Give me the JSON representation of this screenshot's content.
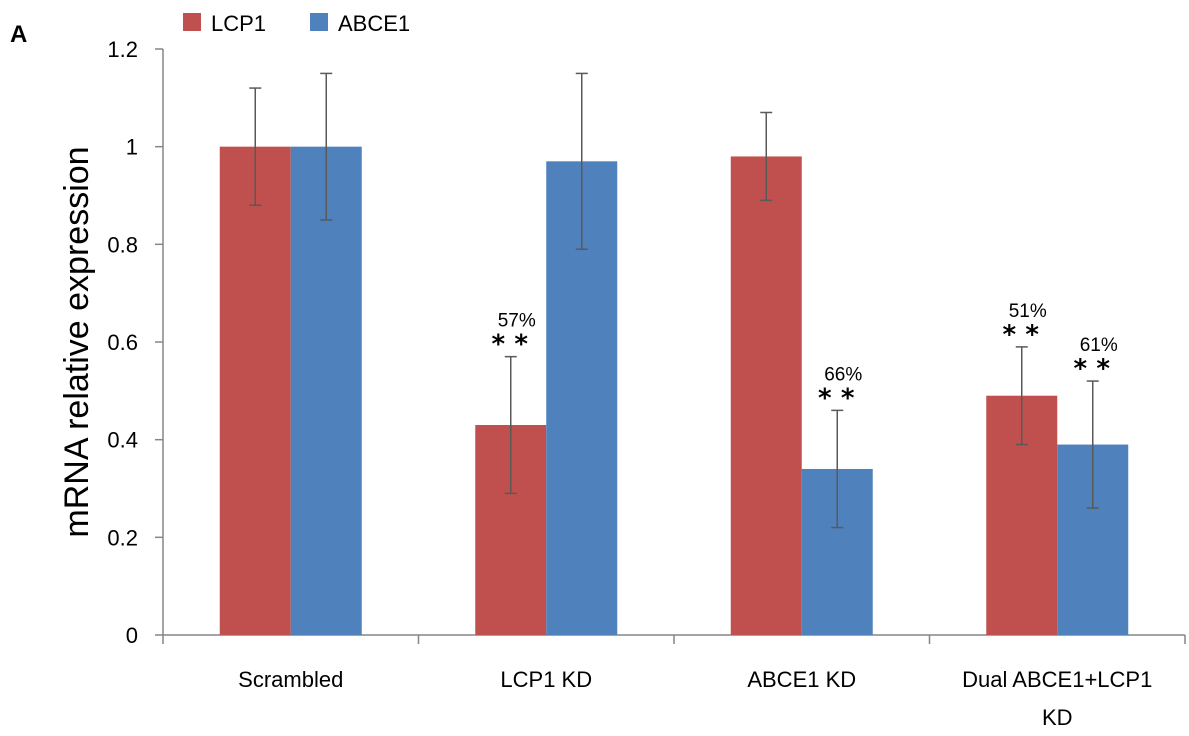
{
  "panel_label": "A",
  "chart_data": {
    "type": "bar",
    "title": "",
    "xlabel": "",
    "ylabel": "mRNA relative expression",
    "ylim": [
      0,
      1.2
    ],
    "yticks": [
      "0",
      "0.2",
      "0.4",
      "0.6",
      "0.8",
      "1",
      "1.2"
    ],
    "categories": [
      [
        "Scrambled"
      ],
      [
        "LCP1 KD"
      ],
      [
        "ABCE1 KD"
      ],
      [
        "Dual ABCE1+LCP1",
        "KD"
      ]
    ],
    "legend_position": "top-left",
    "grid": false,
    "series": [
      {
        "name": "LCP1",
        "color": "#c0504d",
        "values": [
          1.0,
          0.43,
          0.98,
          0.49
        ],
        "error": [
          0.12,
          0.14,
          0.09,
          0.1
        ],
        "annotations": [
          null,
          {
            "pct": "57%",
            "sig": "**"
          },
          null,
          {
            "pct": "51%",
            "sig": "**"
          }
        ]
      },
      {
        "name": "ABCE1",
        "color": "#4f81bd",
        "values": [
          1.0,
          0.97,
          0.34,
          0.39
        ],
        "error": [
          0.15,
          0.18,
          0.12,
          0.13
        ],
        "annotations": [
          null,
          null,
          {
            "pct": "66%",
            "sig": "**"
          },
          {
            "pct": "61%",
            "sig": "**"
          }
        ]
      }
    ]
  }
}
